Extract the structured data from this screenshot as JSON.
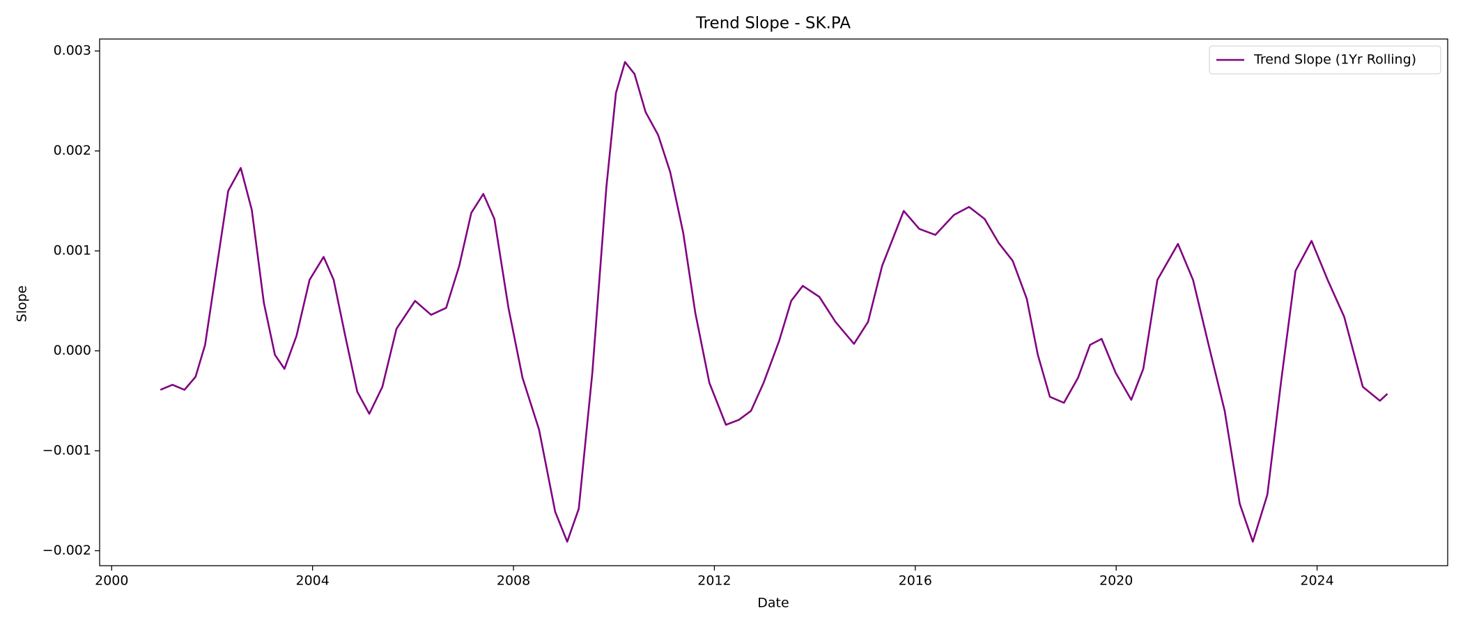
{
  "chart_data": {
    "type": "line",
    "title": "Trend Slope - SK.PA",
    "xlabel": "Date",
    "ylabel": "Slope",
    "x": [
      2000.97,
      2001.21,
      2001.45,
      2001.67,
      2001.86,
      2002.08,
      2002.32,
      2002.57,
      2002.79,
      2003.03,
      2003.25,
      2003.44,
      2003.68,
      2003.94,
      2004.22,
      2004.42,
      2004.65,
      2004.89,
      2005.13,
      2005.39,
      2005.67,
      2006.04,
      2006.36,
      2006.66,
      2006.92,
      2007.16,
      2007.4,
      2007.62,
      2007.9,
      2008.18,
      2008.51,
      2008.83,
      2009.07,
      2009.3,
      2009.57,
      2009.85,
      2010.04,
      2010.22,
      2010.41,
      2010.63,
      2010.88,
      2011.12,
      2011.38,
      2011.62,
      2011.9,
      2012.23,
      2012.49,
      2012.73,
      2012.98,
      2013.29,
      2013.53,
      2013.76,
      2014.09,
      2014.41,
      2014.78,
      2015.06,
      2015.34,
      2015.77,
      2016.08,
      2016.4,
      2016.77,
      2017.07,
      2017.38,
      2017.66,
      2017.94,
      2018.22,
      2018.44,
      2018.68,
      2018.96,
      2019.24,
      2019.48,
      2019.71,
      2019.99,
      2020.3,
      2020.54,
      2020.82,
      2021.23,
      2021.53,
      2021.84,
      2022.16,
      2022.46,
      2022.72,
      2023.01,
      2023.28,
      2023.57,
      2023.89,
      2024.21,
      2024.54,
      2024.91,
      2025.25,
      2025.4
    ],
    "series": [
      {
        "name": "Trend Slope (1Yr Rolling)",
        "color": "#800080",
        "values": [
          -0.00039,
          -0.00034,
          -0.00039,
          -0.00026,
          6e-05,
          0.0008,
          0.0016,
          0.00183,
          0.00141,
          0.00048,
          -4e-05,
          -0.00018,
          0.00015,
          0.00071,
          0.00094,
          0.00071,
          0.00015,
          -0.00041,
          -0.00063,
          -0.00036,
          0.00022,
          0.0005,
          0.00036,
          0.00043,
          0.00085,
          0.00138,
          0.00157,
          0.00132,
          0.00043,
          -0.00027,
          -0.00079,
          -0.00161,
          -0.00191,
          -0.00158,
          -0.00022,
          0.00164,
          0.00258,
          0.00289,
          0.00277,
          0.00239,
          0.00216,
          0.00179,
          0.00118,
          0.00038,
          -0.00032,
          -0.00074,
          -0.00069,
          -0.0006,
          -0.00032,
          0.0001,
          0.0005,
          0.00065,
          0.00054,
          0.00029,
          7e-05,
          0.00029,
          0.00085,
          0.0014,
          0.00122,
          0.00116,
          0.00136,
          0.00144,
          0.00132,
          0.00108,
          0.0009,
          0.00052,
          -4e-05,
          -0.00046,
          -0.00052,
          -0.00027,
          6e-05,
          0.00012,
          -0.00022,
          -0.00049,
          -0.00018,
          0.00071,
          0.00107,
          0.00071,
          6e-05,
          -0.0006,
          -0.00153,
          -0.00191,
          -0.00144,
          -0.00032,
          0.0008,
          0.0011,
          0.00071,
          0.00034,
          -0.00036,
          -0.0005,
          -0.00043
        ]
      }
    ],
    "xlim": [
      1999.76,
      2026.6
    ],
    "ylim": [
      -0.00215,
      0.00312
    ],
    "xticks": [
      2000,
      2004,
      2008,
      2012,
      2016,
      2020,
      2024
    ],
    "yticks": [
      {
        "value": -0.002,
        "label": "−0.002"
      },
      {
        "value": -0.001,
        "label": "−0.001"
      },
      {
        "value": 0,
        "label": "0.000"
      },
      {
        "value": 0.001,
        "label": "0.001"
      },
      {
        "value": 0.002,
        "label": "0.002"
      },
      {
        "value": 0.003,
        "label": "0.003"
      }
    ],
    "grid": false,
    "legend": "upper right"
  }
}
